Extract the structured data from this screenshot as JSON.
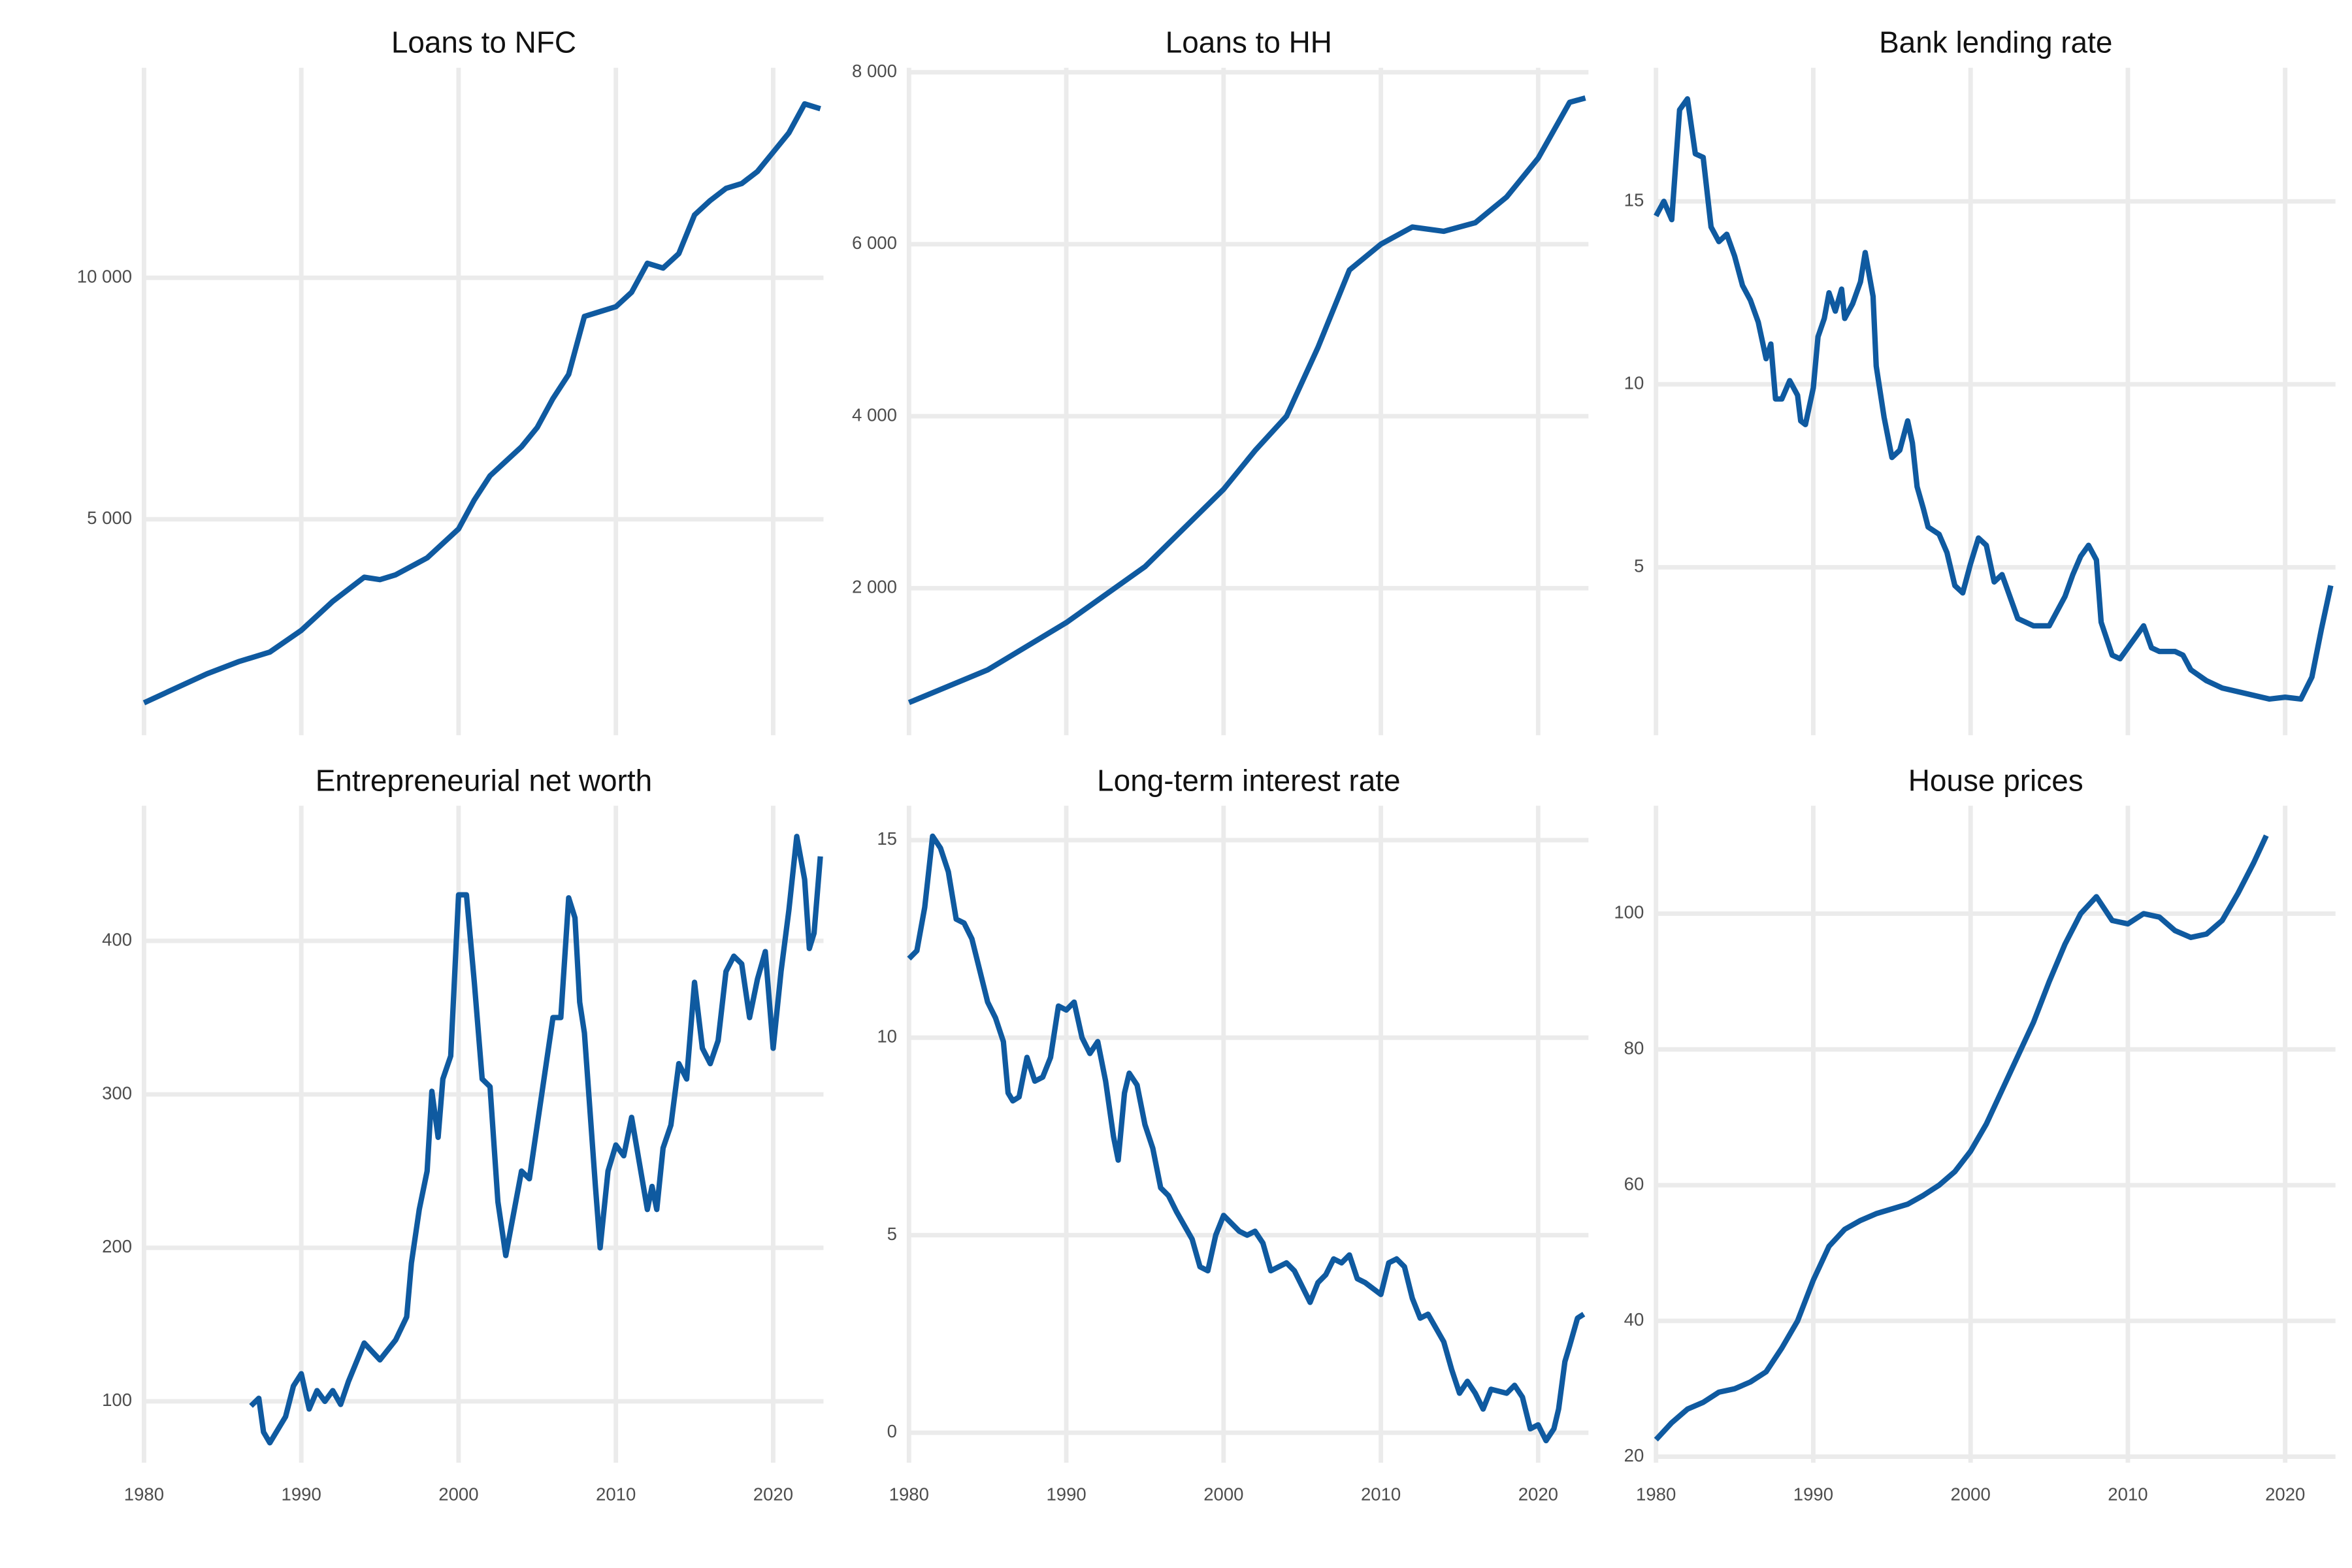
{
  "chart_data": [
    {
      "type": "line",
      "title": "Loans to NFC",
      "color": "#0f5aa0",
      "grid": true,
      "show_x_tick_labels": false,
      "xlim": [
        1980,
        2023.2
      ],
      "xticks": [
        1980,
        1990,
        2000,
        2010,
        2020
      ],
      "ylim": [
        528,
        14348
      ],
      "yticks": [
        {
          "value": 5000,
          "label": "5 000"
        },
        {
          "value": 10000,
          "label": "10 000"
        }
      ],
      "x": [
        1980,
        1982,
        1984,
        1986,
        1988,
        1990,
        1992,
        1994,
        1995,
        1996,
        1998,
        2000,
        2001,
        2002,
        2003,
        2004,
        2005,
        2006,
        2007,
        2008,
        2009,
        2010,
        2011,
        2012,
        2013,
        2014,
        2015,
        2016,
        2017,
        2018,
        2019,
        2020,
        2021,
        2022,
        2023
      ],
      "values": [
        1200,
        1500,
        1800,
        2050,
        2250,
        2700,
        3300,
        3800,
        3750,
        3850,
        4200,
        4800,
        5400,
        5900,
        6200,
        6500,
        6900,
        7500,
        8000,
        9200,
        9300,
        9400,
        9700,
        10300,
        10200,
        10500,
        11300,
        11600,
        11850,
        11950,
        12200,
        12600,
        13000,
        13600,
        13500
      ]
    },
    {
      "type": "line",
      "title": "Loans to HH",
      "color": "#0f5aa0",
      "grid": true,
      "show_x_tick_labels": false,
      "xlim": [
        1980,
        2023.2
      ],
      "xticks": [
        1980,
        1990,
        2000,
        2010,
        2020
      ],
      "ylim": [
        290,
        8052
      ],
      "yticks": [
        {
          "value": 2000,
          "label": "2 000"
        },
        {
          "value": 4000,
          "label": "4 000"
        },
        {
          "value": 6000,
          "label": "6 000"
        },
        {
          "value": 8000,
          "label": "8 000"
        }
      ],
      "x": [
        1980,
        1985,
        1990,
        1995,
        2000,
        2002,
        2004,
        2006,
        2008,
        2010,
        2012,
        2014,
        2016,
        2018,
        2020,
        2022,
        2023
      ],
      "values": [
        670,
        1050,
        1600,
        2250,
        3150,
        3600,
        4000,
        4800,
        5700,
        6000,
        6200,
        6150,
        6250,
        6550,
        7000,
        7650,
        7700
      ]
    },
    {
      "type": "line",
      "title": "Bank lending rate",
      "color": "#0f5aa0",
      "grid": true,
      "show_x_tick_labels": false,
      "xlim": [
        1980,
        2023.2
      ],
      "xticks": [
        1980,
        1990,
        2000,
        2010,
        2020
      ],
      "ylim": [
        0.41,
        18.65
      ],
      "yticks": [
        5,
        10,
        15
      ],
      "x": [
        1980,
        1980.5,
        1981,
        1981.5,
        1982,
        1982.5,
        1983,
        1983.5,
        1984,
        1984.5,
        1985,
        1985.5,
        1986,
        1986.5,
        1987,
        1987.3,
        1987.6,
        1988,
        1988.5,
        1989,
        1989.2,
        1989.5,
        1990,
        1990.3,
        1990.7,
        1991,
        1991.4,
        1991.8,
        1992,
        1992.5,
        1993,
        1993.3,
        1993.8,
        1994,
        1994.5,
        1995,
        1995.5,
        1996,
        1996.3,
        1996.6,
        1997,
        1997.3,
        1998,
        1998.5,
        1999,
        1999.5,
        2000,
        2000.5,
        2001,
        2001.5,
        2002,
        2003,
        2004,
        2005,
        2006,
        2006.5,
        2007,
        2007.5,
        2008,
        2008.3,
        2009,
        2009.5,
        2010,
        2010.5,
        2011,
        2011.5,
        2012,
        2013,
        2013.5,
        2014,
        2015,
        2016,
        2018,
        2019,
        2020,
        2021,
        2021.7,
        2022.3,
        2022.9
      ],
      "values": [
        14.6,
        15.0,
        14.5,
        17.5,
        17.8,
        16.3,
        16.2,
        14.3,
        13.9,
        14.1,
        13.5,
        12.7,
        12.3,
        11.7,
        10.7,
        11.1,
        9.6,
        9.6,
        10.1,
        9.7,
        9.0,
        8.9,
        9.9,
        11.3,
        11.8,
        12.5,
        12.0,
        12.6,
        11.8,
        12.2,
        12.8,
        13.6,
        12.4,
        10.5,
        9.1,
        8.0,
        8.2,
        9.0,
        8.4,
        7.2,
        6.6,
        6.1,
        5.9,
        5.4,
        4.5,
        4.3,
        5.1,
        5.8,
        5.6,
        4.6,
        4.8,
        3.6,
        3.4,
        3.4,
        4.2,
        4.8,
        5.3,
        5.6,
        5.2,
        3.5,
        2.6,
        2.5,
        2.8,
        3.1,
        3.4,
        2.8,
        2.7,
        2.7,
        2.6,
        2.2,
        1.9,
        1.7,
        1.5,
        1.4,
        1.45,
        1.4,
        2.0,
        3.3,
        4.5
      ]
    },
    {
      "type": "line",
      "title": "Entrepreneurial net worth",
      "color": "#0f5aa0",
      "grid": true,
      "show_x_tick_labels": true,
      "xlim": [
        1980,
        2023.2
      ],
      "xticks": [
        1980,
        1990,
        2000,
        2010,
        2020
      ],
      "ylim": [
        60,
        488
      ],
      "yticks": [
        100,
        200,
        300,
        400
      ],
      "x": [
        1986.8,
        1987.3,
        1987.6,
        1988,
        1989,
        1989.5,
        1990,
        1990.5,
        1991,
        1991.5,
        1992,
        1992.5,
        1993,
        1994,
        1995,
        1996,
        1996.7,
        1997,
        1997.5,
        1998,
        1998.3,
        1998.7,
        1999,
        1999.5,
        2000,
        2000.5,
        2001,
        2001.5,
        2002,
        2002.5,
        2003,
        2004,
        2004.5,
        2005,
        2005.5,
        2006,
        2006.5,
        2007,
        2007.4,
        2007.7,
        2008,
        2008.7,
        2009,
        2009.5,
        2010,
        2010.5,
        2011,
        2011.5,
        2012,
        2012.3,
        2012.6,
        2013,
        2013.5,
        2014,
        2014.5,
        2015,
        2015.5,
        2016,
        2016.5,
        2017,
        2017.5,
        2018,
        2018.5,
        2019,
        2019.5,
        2020,
        2020.5,
        2021,
        2021.5,
        2022,
        2022.3,
        2022.6,
        2023
      ],
      "values": [
        97,
        102,
        80,
        73,
        90,
        110,
        118,
        95,
        107,
        100,
        107,
        98,
        113,
        138,
        127,
        140,
        155,
        190,
        225,
        250,
        302,
        272,
        310,
        325,
        430,
        430,
        373,
        310,
        305,
        230,
        195,
        250,
        245,
        280,
        315,
        350,
        350,
        428,
        415,
        360,
        340,
        240,
        200,
        250,
        267,
        260,
        285,
        255,
        225,
        240,
        225,
        265,
        280,
        320,
        310,
        373,
        330,
        320,
        335,
        380,
        390,
        385,
        350,
        375,
        393,
        330,
        380,
        420,
        468,
        440,
        395,
        405,
        455
      ]
    },
    {
      "type": "line",
      "title": "Long-term interest rate",
      "color": "#0f5aa0",
      "grid": true,
      "show_x_tick_labels": true,
      "xlim": [
        1980,
        2023.2
      ],
      "xticks": [
        1980,
        1990,
        2000,
        2010,
        2020
      ],
      "ylim": [
        -0.76,
        15.87
      ],
      "yticks": [
        0,
        5,
        10,
        15
      ],
      "x": [
        1980,
        1980.5,
        1981,
        1981.5,
        1982,
        1982.5,
        1983,
        1983.5,
        1984,
        1984.5,
        1985,
        1985.5,
        1986,
        1986.3,
        1986.6,
        1987,
        1987.5,
        1988,
        1988.5,
        1989,
        1989.5,
        1990,
        1990.5,
        1991,
        1991.5,
        1992,
        1992.5,
        1993,
        1993.3,
        1993.7,
        1994,
        1994.5,
        1995,
        1995.5,
        1996,
        1996.5,
        1997,
        1998,
        1998.5,
        1999,
        1999.5,
        2000,
        2000.5,
        2001,
        2001.5,
        2002,
        2002.5,
        2003,
        2004,
        2004.5,
        2005,
        2005.5,
        2006,
        2006.5,
        2007,
        2007.5,
        2008,
        2008.5,
        2009,
        2010,
        2010.5,
        2011,
        2011.5,
        2012,
        2012.5,
        2013,
        2014,
        2014.5,
        2015,
        2015.5,
        2016,
        2016.5,
        2017,
        2018,
        2018.5,
        2019,
        2019.5,
        2020,
        2020.5,
        2021,
        2021.3,
        2021.7,
        2022,
        2022.5,
        2022.9
      ],
      "values": [
        12.0,
        12.2,
        13.3,
        15.1,
        14.8,
        14.2,
        13.0,
        12.9,
        12.5,
        11.7,
        10.9,
        10.5,
        9.9,
        8.6,
        8.4,
        8.5,
        9.5,
        8.9,
        9.0,
        9.5,
        10.8,
        10.7,
        10.9,
        10.0,
        9.6,
        9.9,
        8.9,
        7.5,
        6.9,
        8.6,
        9.1,
        8.8,
        7.8,
        7.2,
        6.2,
        6.0,
        5.6,
        4.9,
        4.2,
        4.1,
        5.0,
        5.5,
        5.3,
        5.1,
        5.0,
        5.1,
        4.8,
        4.1,
        4.3,
        4.1,
        3.7,
        3.3,
        3.8,
        4.0,
        4.4,
        4.3,
        4.5,
        3.9,
        3.8,
        3.5,
        4.3,
        4.4,
        4.2,
        3.4,
        2.9,
        3.0,
        2.3,
        1.6,
        1.0,
        1.3,
        1.0,
        0.6,
        1.1,
        1.0,
        1.2,
        0.9,
        0.1,
        0.2,
        -0.2,
        0.1,
        0.6,
        1.8,
        2.2,
        2.9,
        3.0
      ]
    },
    {
      "type": "line",
      "title": "House prices",
      "color": "#0f5aa0",
      "grid": true,
      "show_x_tick_labels": true,
      "xlim": [
        1980,
        2023.2
      ],
      "xticks": [
        1980,
        1990,
        2000,
        2010,
        2020
      ],
      "ylim": [
        19.1,
        115.9
      ],
      "yticks": [
        20,
        40,
        60,
        80,
        100
      ],
      "x": [
        1980,
        1981,
        1982,
        1983,
        1984,
        1985,
        1986,
        1987,
        1988,
        1989,
        1990,
        1991,
        1992,
        1993,
        1994,
        1995,
        1996,
        1997,
        1998,
        1999,
        2000,
        2001,
        2002,
        2003,
        2004,
        2005,
        2006,
        2007,
        2008,
        2009,
        2010,
        2011,
        2012,
        2013,
        2014,
        2015,
        2016,
        2017,
        2018,
        2018.8
      ],
      "values": [
        22.5,
        25,
        27,
        28,
        29.5,
        30,
        31,
        32.5,
        36,
        40,
        46,
        51,
        53.5,
        54.8,
        55.8,
        56.5,
        57.2,
        58.5,
        60,
        62,
        65,
        69,
        74,
        79,
        84,
        90,
        95.5,
        100,
        102.5,
        99,
        98.5,
        100,
        99.5,
        97.5,
        96.5,
        97,
        99,
        103,
        107.5,
        111.5
      ]
    }
  ]
}
